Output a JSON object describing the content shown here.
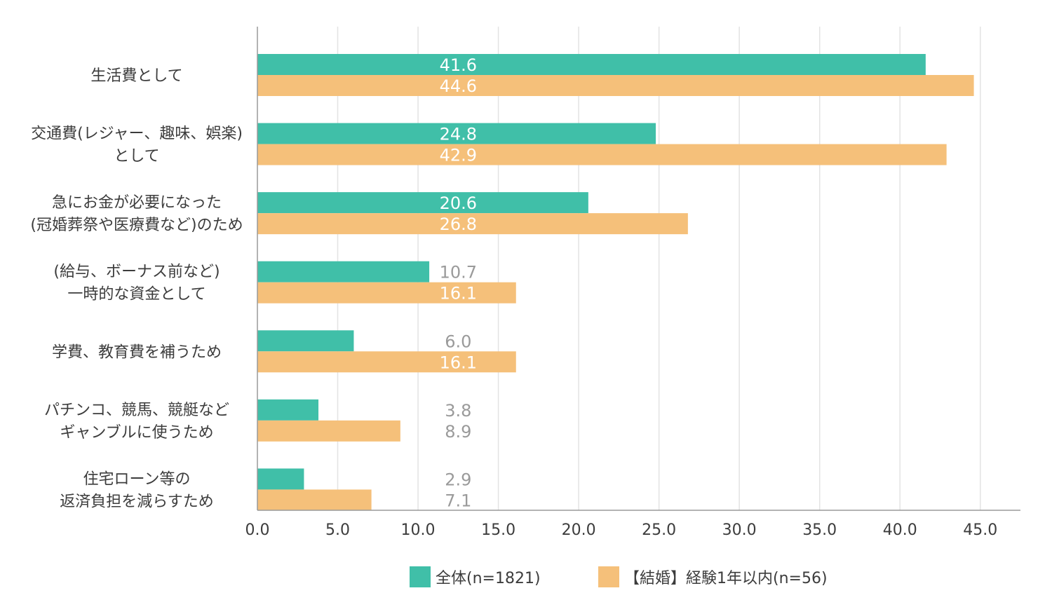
{
  "chart_data": {
    "type": "bar",
    "orientation": "horizontal",
    "categories": [
      [
        "生活費として"
      ],
      [
        "交通費(レジャー、趣味、娯楽)",
        "として"
      ],
      [
        "急にお金が必要になった",
        "(冠婚葬祭や医療費など)のため"
      ],
      [
        "(給与、ボーナス前など)",
        "一時的な資金として"
      ],
      [
        "学費、教育費を補うため"
      ],
      [
        "パチンコ、競馬、競艇など",
        "ギャンブルに使うため"
      ],
      [
        "住宅ローン等の",
        "返済負担を減らすため"
      ]
    ],
    "series": [
      {
        "name": "全体(n=1821)",
        "color": "#40bfa8",
        "values": [
          41.6,
          24.8,
          20.6,
          10.7,
          6.0,
          3.8,
          2.9
        ]
      },
      {
        "name": "【結婚】経験1年以内(n=56)",
        "color": "#f5c07a",
        "values": [
          44.6,
          42.9,
          26.8,
          16.1,
          16.1,
          8.9,
          7.1
        ]
      }
    ],
    "xlim": [
      0,
      47.5
    ],
    "xticks": [
      "0.0",
      "5.0",
      "10.0",
      "15.0",
      "20.0",
      "25.0",
      "30.0",
      "35.0",
      "40.0",
      "45.0"
    ],
    "grid": true,
    "legend": "bottom-center",
    "colors": {
      "grid": "#e3e3e3",
      "axis": "#9a9a9a",
      "label_inside": "#ffffff",
      "label_outside": "#9a9a9a"
    }
  }
}
